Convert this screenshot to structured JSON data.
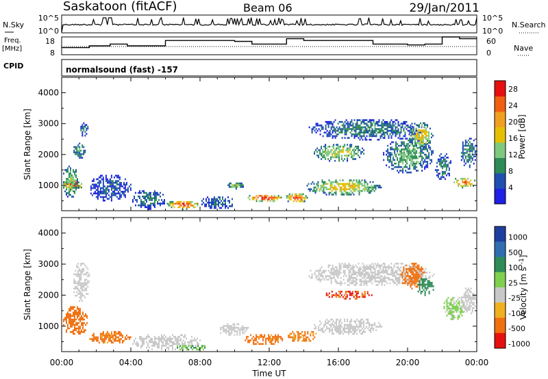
{
  "header": {
    "station": "Saskatoon (fitACF)",
    "beam": "Beam 06",
    "date": "29/Jan/2011"
  },
  "nsky_panel": {
    "left_label": "N.Sky",
    "right_label": "N.Search",
    "y_ticks": [
      "10^5",
      "10^0"
    ]
  },
  "freq_panel": {
    "left_label_line1": "Freq.",
    "left_label_line2": "[MHz]",
    "left_ticks": [
      "18",
      "8"
    ],
    "right_ticks": [
      "60",
      "0"
    ],
    "right_label": "Nave"
  },
  "cpid_panel": {
    "label": "CPID",
    "program": "normalsound (fast) -157"
  },
  "colors": {
    "power_scale": [
      "#1f1fe6",
      "#1f4fb0",
      "#2e8b57",
      "#7fc97f",
      "#e6c000",
      "#f0a020",
      "#f06010",
      "#e61010"
    ],
    "velocity_scale": [
      "#1f3fa0",
      "#2f6fb0",
      "#2e8b57",
      "#7fd04f",
      "#c8c8c8",
      "#f0b020",
      "#f07010",
      "#e61010"
    ]
  },
  "chart_data": [
    {
      "type": "heatmap",
      "name_panel": "power",
      "xlabel": "",
      "ylabel": "Slant Range [km]",
      "x_ticks": [
        "00:00",
        "04:00",
        "08:00",
        "12:00",
        "16:00",
        "20:00",
        "00:00"
      ],
      "y_ticks": [
        "1000",
        "2000",
        "3000",
        "4000"
      ],
      "xlim_hours": [
        0,
        24
      ],
      "ylim_km": [
        180,
        4500
      ],
      "colorbar_label": "Power [dB]",
      "colorbar_ticks": [
        "4",
        "8",
        "12",
        "16",
        "20",
        "24",
        "28"
      ],
      "colorbar_range": [
        0,
        30
      ],
      "blobs": [
        {
          "t0": 0.0,
          "t1": 1.2,
          "r0": 850,
          "r1": 1250,
          "v": 28
        },
        {
          "t0": 0.0,
          "t1": 1.0,
          "r0": 600,
          "r1": 1700,
          "v": 14
        },
        {
          "t0": 0.6,
          "t1": 1.4,
          "r0": 1900,
          "r1": 2500,
          "v": 10
        },
        {
          "t0": 1.0,
          "t1": 1.6,
          "r0": 2600,
          "r1": 3100,
          "v": 8
        },
        {
          "t0": 1.5,
          "t1": 4.0,
          "r0": 500,
          "r1": 1400,
          "v": 6
        },
        {
          "t0": 4.0,
          "t1": 6.0,
          "r0": 250,
          "r1": 900,
          "v": 9
        },
        {
          "t0": 6.0,
          "t1": 8.0,
          "r0": 250,
          "r1": 550,
          "v": 26
        },
        {
          "t0": 8.0,
          "t1": 10.0,
          "r0": 250,
          "r1": 700,
          "v": 7
        },
        {
          "t0": 9.5,
          "t1": 10.5,
          "r0": 900,
          "r1": 1150,
          "v": 14
        },
        {
          "t0": 10.6,
          "t1": 12.8,
          "r0": 500,
          "r1": 750,
          "v": 28
        },
        {
          "t0": 12.9,
          "t1": 14.2,
          "r0": 450,
          "r1": 800,
          "v": 26
        },
        {
          "t0": 14.0,
          "t1": 18.5,
          "r0": 700,
          "r1": 1250,
          "v": 18
        },
        {
          "t0": 14.5,
          "t1": 17.5,
          "r0": 1800,
          "r1": 2400,
          "v": 16
        },
        {
          "t0": 14.2,
          "t1": 21.0,
          "r0": 2500,
          "r1": 3200,
          "v": 9
        },
        {
          "t0": 18.5,
          "t1": 21.5,
          "r0": 1400,
          "r1": 2600,
          "v": 12
        },
        {
          "t0": 20.0,
          "t1": 21.5,
          "r0": 2200,
          "r1": 3100,
          "v": 18
        },
        {
          "t0": 21.5,
          "t1": 22.5,
          "r0": 1200,
          "r1": 2100,
          "v": 9
        },
        {
          "t0": 22.5,
          "t1": 24.0,
          "r0": 950,
          "r1": 1300,
          "v": 24
        },
        {
          "t0": 23.0,
          "t1": 24.0,
          "r0": 1600,
          "r1": 2600,
          "v": 10
        }
      ]
    },
    {
      "type": "heatmap",
      "name_panel": "velocity",
      "xlabel": "Time UT",
      "ylabel": "Slant Range [km]",
      "x_ticks": [
        "00:00",
        "04:00",
        "08:00",
        "12:00",
        "16:00",
        "20:00",
        "00:00"
      ],
      "y_ticks": [
        "1000",
        "2000",
        "3000",
        "4000"
      ],
      "xlim_hours": [
        0,
        24
      ],
      "ylim_km": [
        180,
        4500
      ],
      "colorbar_label": "Velocity [m s^-1]",
      "colorbar_ticks": [
        "1000",
        "500",
        "100",
        "25",
        "-25",
        "-100",
        "-500",
        "-1000"
      ],
      "blobs": [
        {
          "t0": 0.0,
          "t1": 1.5,
          "r0": 700,
          "r1": 1700,
          "v": -200
        },
        {
          "t0": 0.6,
          "t1": 1.6,
          "r0": 1800,
          "r1": 3100,
          "v": 0
        },
        {
          "t0": 1.5,
          "t1": 4.0,
          "r0": 450,
          "r1": 900,
          "v": -150
        },
        {
          "t0": 4.0,
          "t1": 8.0,
          "r0": 250,
          "r1": 800,
          "v": 0
        },
        {
          "t0": 6.5,
          "t1": 8.5,
          "r0": 250,
          "r1": 450,
          "v": 80
        },
        {
          "t0": 9.0,
          "t1": 10.8,
          "r0": 700,
          "r1": 1150,
          "v": 0
        },
        {
          "t0": 10.5,
          "t1": 12.9,
          "r0": 400,
          "r1": 800,
          "v": -150
        },
        {
          "t0": 13.0,
          "t1": 14.8,
          "r0": 500,
          "r1": 900,
          "v": -120
        },
        {
          "t0": 14.5,
          "t1": 18.5,
          "r0": 750,
          "r1": 1300,
          "v": 0
        },
        {
          "t0": 15.2,
          "t1": 18.0,
          "r0": 1900,
          "r1": 2200,
          "v": -500
        },
        {
          "t0": 14.2,
          "t1": 21.5,
          "r0": 2300,
          "r1": 3100,
          "v": 0
        },
        {
          "t0": 19.5,
          "t1": 21.0,
          "r0": 2200,
          "r1": 3100,
          "v": -300
        },
        {
          "t0": 20.5,
          "t1": 21.5,
          "r0": 2000,
          "r1": 2600,
          "v": 200
        },
        {
          "t0": 22.0,
          "t1": 23.3,
          "r0": 1200,
          "r1": 2000,
          "v": 40
        },
        {
          "t0": 23.0,
          "t1": 24.0,
          "r0": 1400,
          "r1": 2300,
          "v": 0
        }
      ]
    }
  ]
}
